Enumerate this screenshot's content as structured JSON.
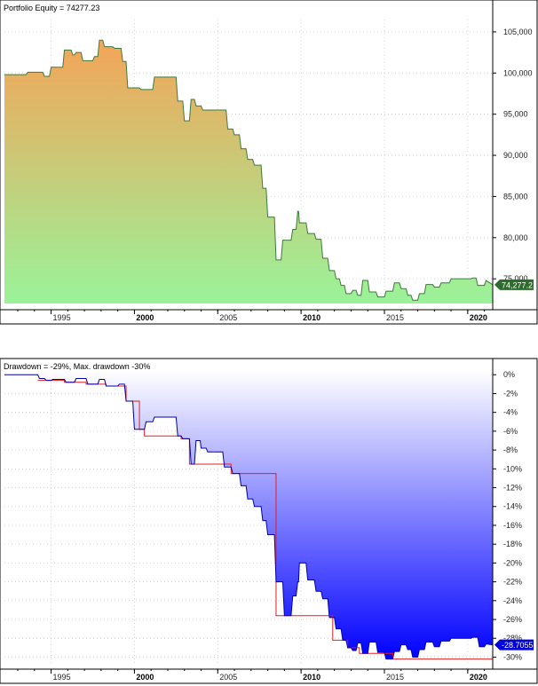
{
  "chart_data": [
    {
      "type": "area",
      "title": "Portfolio Equity = 74277.23",
      "last_value_label": "74,277.2",
      "ylim": [
        72000,
        106500
      ],
      "xlim": [
        1992.2,
        2021.5
      ],
      "y_ticks": [
        75000,
        80000,
        85000,
        90000,
        95000,
        100000,
        105000
      ],
      "y_tick_labels": [
        "75,000",
        "80,000",
        "85,000",
        "90,000",
        "95,000",
        "100,000",
        "105,000"
      ],
      "x_ticks": [
        1995,
        2000,
        2005,
        2010,
        2015,
        2020
      ],
      "x_tick_labels": [
        "1995",
        "2000",
        "2005",
        "2010",
        "2015",
        "2020"
      ],
      "x_tick_bold": [
        false,
        true,
        false,
        true,
        false,
        true
      ],
      "colors": {
        "top": "#f4a458",
        "bottom": "#9af39a",
        "line": "#3c7a3c",
        "badge": "#2e6b2e"
      },
      "series": [
        {
          "x": [
            1992.2,
            1993.5,
            1993.6,
            1994.5,
            1994.6,
            1994.9,
            1995.0,
            1995.7,
            1995.8,
            1996.2,
            1996.3,
            1996.4,
            1996.5,
            1996.8,
            1996.9,
            1997.5,
            1997.6,
            1997.8,
            1997.9,
            1998.1,
            1998.2,
            1998.7,
            1998.8,
            1999.2,
            1999.3,
            1999.5,
            1999.6,
            2000.3,
            2000.4,
            2001.1,
            2001.2,
            2002.5,
            2002.6,
            2002.9,
            2003.0,
            2003.3,
            2003.4,
            2003.6,
            2003.7,
            2004.0,
            2004.1,
            2005.5,
            2005.6,
            2005.9,
            2006.0,
            2006.3,
            2006.4,
            2006.7,
            2006.8,
            2007.1,
            2007.2,
            2007.6,
            2007.7,
            2007.9,
            2008.0,
            2008.4,
            2008.5,
            2008.8,
            2008.9,
            2009.4,
            2009.5,
            2009.7,
            2009.8,
            2009.85,
            2009.9,
            2010.3,
            2010.4,
            2010.8,
            2010.9,
            2011.2,
            2011.3,
            2011.6,
            2011.7,
            2012.0,
            2012.1,
            2012.3,
            2012.4,
            2012.6,
            2012.7,
            2013.0,
            2013.1,
            2013.3,
            2013.4,
            2013.6,
            2013.7,
            2014.0,
            2014.1,
            2014.5,
            2014.6,
            2015.0,
            2015.1,
            2015.5,
            2015.6,
            2015.9,
            2016.0,
            2016.3,
            2016.4,
            2016.6,
            2016.7,
            2017.0,
            2017.1,
            2017.4,
            2017.5,
            2017.9,
            2018.0,
            2018.3,
            2018.4,
            2018.9,
            2019.0,
            2020.2,
            2020.3,
            2020.5,
            2020.6,
            2021.0,
            2021.1,
            2021.5
          ],
          "values": [
            99800,
            99800,
            100100,
            100100,
            99600,
            99600,
            100700,
            100700,
            102800,
            102800,
            102200,
            102200,
            102500,
            102500,
            101500,
            101500,
            102000,
            102000,
            104000,
            104000,
            103200,
            103200,
            103000,
            103000,
            101400,
            101400,
            98200,
            98200,
            98000,
            98000,
            99500,
            99500,
            96600,
            96600,
            94200,
            94200,
            96800,
            96800,
            96000,
            96000,
            95500,
            95500,
            93200,
            93200,
            92500,
            92500,
            90800,
            90800,
            89500,
            89500,
            88800,
            88800,
            86000,
            86000,
            82500,
            82500,
            77300,
            77300,
            79700,
            79700,
            81000,
            81000,
            83200,
            83200,
            81800,
            81800,
            80500,
            80500,
            79800,
            79800,
            77500,
            77500,
            76000,
            76000,
            75000,
            75000,
            74200,
            74200,
            73200,
            73200,
            73600,
            73600,
            73000,
            73000,
            74800,
            74800,
            73400,
            73400,
            72800,
            72800,
            73500,
            73500,
            74500,
            74500,
            73800,
            73800,
            73000,
            73000,
            72400,
            72400,
            73200,
            73200,
            74300,
            74300,
            74000,
            74000,
            74500,
            74500,
            75000,
            75000,
            75100,
            75100,
            74200,
            74200,
            74800,
            74277
          ]
        }
      ]
    },
    {
      "type": "area",
      "title": "Drawdown = -29%, Max. drawdown -30%",
      "last_value_label": "-28.7055",
      "ylim": [
        -30.9,
        0.4
      ],
      "xlim": [
        1992.2,
        2021.5
      ],
      "y_ticks": [
        0,
        -2,
        -4,
        -6,
        -8,
        -10,
        -12,
        -14,
        -16,
        -18,
        -20,
        -22,
        -24,
        -26,
        -28,
        -30
      ],
      "y_tick_labels": [
        "0%",
        "-2%",
        "-4%",
        "-6%",
        "-8%",
        "-10%",
        "-12%",
        "-14%",
        "-16%",
        "-18%",
        "-20%",
        "-22%",
        "-24%",
        "-26%",
        "-28%",
        "-30%"
      ],
      "x_ticks": [
        1995,
        2000,
        2005,
        2010,
        2015,
        2020
      ],
      "x_tick_labels": [
        "1995",
        "2000",
        "2005",
        "2010",
        "2015",
        "2020"
      ],
      "x_tick_bold": [
        false,
        true,
        false,
        true,
        false,
        true
      ],
      "colors": {
        "top": "#ffffff",
        "bottom": "#0000ff",
        "line": "#0000aa",
        "max_line": "#e02020",
        "badge": "#0000dd"
      },
      "series": [
        {
          "x": [
            1992.2,
            1994.2,
            1994.3,
            1994.6,
            1994.7,
            1995.0,
            1995.1,
            1995.8,
            1995.9,
            1996.4,
            1996.5,
            1997.1,
            1997.2,
            1997.8,
            1997.9,
            1998.2,
            1998.3,
            1999.0,
            1999.1,
            1999.4,
            1999.5,
            1999.9,
            2000.0,
            2000.6,
            2000.7,
            2001.1,
            2001.2,
            2002.5,
            2002.6,
            2002.8,
            2002.9,
            2003.3,
            2003.4,
            2003.6,
            2003.7,
            2003.95,
            2004.0,
            2004.3,
            2004.4,
            2005.3,
            2005.4,
            2005.8,
            2005.9,
            2006.3,
            2006.4,
            2006.7,
            2006.8,
            2007.1,
            2007.2,
            2007.6,
            2007.7,
            2007.9,
            2008.0,
            2008.4,
            2008.5,
            2008.9,
            2009.0,
            2009.4,
            2009.5,
            2009.7,
            2009.8,
            2009.85,
            2009.9,
            2010.3,
            2010.4,
            2010.8,
            2010.9,
            2011.2,
            2011.3,
            2011.6,
            2011.7,
            2012.0,
            2012.1,
            2012.4,
            2012.5,
            2012.7,
            2012.8,
            2013.0,
            2013.1,
            2013.3,
            2013.4,
            2013.6,
            2013.7,
            2014.0,
            2014.1,
            2014.5,
            2014.6,
            2015.0,
            2015.1,
            2015.5,
            2015.6,
            2015.9,
            2016.0,
            2016.3,
            2016.4,
            2016.6,
            2016.7,
            2017.0,
            2017.1,
            2017.4,
            2017.5,
            2017.9,
            2018.0,
            2018.3,
            2018.4,
            2018.9,
            2019.0,
            2020.2,
            2020.3,
            2020.6,
            2020.7,
            2021.0,
            2021.1,
            2021.5
          ],
          "values": [
            0,
            0,
            -0.4,
            -0.4,
            -0.6,
            -0.6,
            -0.5,
            -0.5,
            -0.8,
            -0.8,
            -0.4,
            -0.4,
            -1.0,
            -1.0,
            -0.5,
            -0.5,
            -1.2,
            -1.2,
            -1.0,
            -1.0,
            -2.8,
            -2.8,
            -5.8,
            -5.8,
            -5.0,
            -5.0,
            -4.5,
            -4.5,
            -6.5,
            -6.5,
            -6.8,
            -6.8,
            -9.5,
            -9.5,
            -7.0,
            -7.0,
            -7.8,
            -7.8,
            -8.2,
            -8.2,
            -9.8,
            -9.8,
            -10.5,
            -10.5,
            -11.8,
            -11.8,
            -13.2,
            -13.2,
            -14.0,
            -14.0,
            -15.5,
            -15.5,
            -17.0,
            -17.0,
            -22.0,
            -22.0,
            -25.6,
            -25.6,
            -23.5,
            -23.5,
            -22.0,
            -22.0,
            -20.0,
            -20.0,
            -21.8,
            -21.8,
            -23.0,
            -23.0,
            -23.8,
            -23.8,
            -25.8,
            -25.8,
            -27.0,
            -27.0,
            -28.2,
            -28.2,
            -29.0,
            -29.0,
            -29.3,
            -29.3,
            -28.5,
            -28.5,
            -29.6,
            -29.6,
            -28.4,
            -28.4,
            -29.5,
            -29.5,
            -30.2,
            -30.2,
            -29.4,
            -29.4,
            -28.7,
            -28.7,
            -29.2,
            -29.2,
            -30.0,
            -30.0,
            -29.2,
            -29.2,
            -28.4,
            -28.4,
            -28.9,
            -28.9,
            -28.3,
            -28.3,
            -28.0,
            -28.0,
            -27.9,
            -27.9,
            -28.9,
            -28.9,
            -28.6,
            -28.7
          ]
        }
      ],
      "max_drawdown_line": {
        "x": [
          1994.2,
          1995.8,
          1995.8,
          1997.1,
          1997.1,
          1998.3,
          1998.3,
          1999.5,
          1999.5,
          2000.3,
          2000.3,
          2000.6,
          2000.6,
          2002.8,
          2002.8,
          2003.3,
          2003.3,
          2004.2,
          2004.2,
          2005.8,
          2005.8,
          2008.5,
          2008.5,
          2009.2,
          2009.2,
          2011.9,
          2011.9,
          2012.8,
          2012.8,
          2013.5,
          2013.5,
          2015.5,
          2015.5,
          2016.8,
          2016.8,
          2021.5
        ],
        "values": [
          -0.6,
          -0.6,
          -0.8,
          -0.8,
          -1.0,
          -1.0,
          -1.2,
          -1.2,
          -2.8,
          -2.8,
          -5.8,
          -5.8,
          -6.5,
          -6.5,
          -6.8,
          -6.8,
          -9.5,
          -9.5,
          -9.5,
          -9.5,
          -10.5,
          -10.5,
          -25.6,
          -25.6,
          -25.6,
          -25.6,
          -28.2,
          -28.2,
          -29.0,
          -29.0,
          -29.6,
          -29.6,
          -30.2,
          -30.2,
          -30.2,
          -30.2
        ]
      }
    }
  ]
}
